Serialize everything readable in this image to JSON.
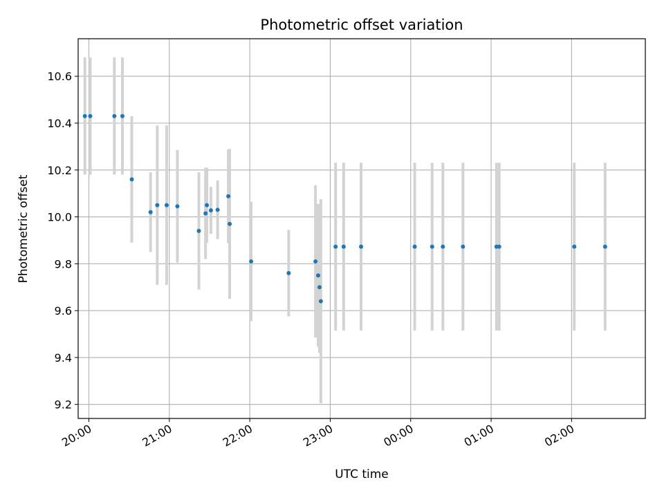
{
  "chart_data": {
    "type": "scatter",
    "title": "Photometric offset variation",
    "xlabel": "UTC time",
    "ylabel": "Photometric offset",
    "x_ticks": [
      "20:00",
      "21:00",
      "22:00",
      "23:00",
      "00:00",
      "01:00",
      "02:00"
    ],
    "y_ticks": [
      "9.2",
      "9.4",
      "9.6",
      "9.8",
      "10.0",
      "10.2",
      "10.4",
      "10.6"
    ],
    "x_tick_times": [
      "20:00",
      "21:00",
      "22:00",
      "23:00",
      "00:00",
      "01:00",
      "02:00"
    ],
    "y_tick_values": [
      9.2,
      9.4,
      9.6,
      9.8,
      10.0,
      10.2,
      10.4,
      10.6
    ],
    "xlim": [
      "19:52",
      "02:55"
    ],
    "ylim": [
      9.14,
      10.76
    ],
    "grid": true,
    "colors": {
      "point": "#1f77b4",
      "errorbar": "#d3d3d3",
      "grid": "#b0b0b0"
    },
    "points": [
      {
        "time": "19:57",
        "y": 10.43,
        "yerr": 0.25
      },
      {
        "time": "20:01",
        "y": 10.43,
        "yerr": 0.25
      },
      {
        "time": "20:19",
        "y": 10.43,
        "yerr": 0.25
      },
      {
        "time": "20:25",
        "y": 10.43,
        "yerr": 0.25
      },
      {
        "time": "20:32",
        "y": 10.16,
        "yerr": 0.27
      },
      {
        "time": "20:46",
        "y": 10.02,
        "yerr": 0.17
      },
      {
        "time": "20:51",
        "y": 10.05,
        "yerr": 0.34
      },
      {
        "time": "20:58",
        "y": 10.05,
        "yerr": 0.34
      },
      {
        "time": "21:06",
        "y": 10.045,
        "yerr": 0.24
      },
      {
        "time": "21:22",
        "y": 9.94,
        "yerr": 0.25
      },
      {
        "time": "21:27",
        "y": 10.015,
        "yerr": 0.195
      },
      {
        "time": "21:28",
        "y": 10.05,
        "yerr": 0.16
      },
      {
        "time": "21:31",
        "y": 10.028,
        "yerr": 0.1
      },
      {
        "time": "21:36",
        "y": 10.03,
        "yerr": 0.125
      },
      {
        "time": "21:44",
        "y": 10.088,
        "yerr": 0.2
      },
      {
        "time": "21:45",
        "y": 9.97,
        "yerr": 0.32
      },
      {
        "time": "22:01",
        "y": 9.81,
        "yerr": 0.255
      },
      {
        "time": "22:29",
        "y": 9.76,
        "yerr": 0.185
      },
      {
        "time": "22:49",
        "y": 9.81,
        "yerr": 0.325
      },
      {
        "time": "22:51",
        "y": 9.75,
        "yerr": 0.305
      },
      {
        "time": "22:52",
        "y": 9.7,
        "yerr": 0.28
      },
      {
        "time": "22:53",
        "y": 9.64,
        "yerr": 0.435
      },
      {
        "time": "23:04",
        "y": 9.873,
        "yerr": 0.358
      },
      {
        "time": "23:10",
        "y": 9.873,
        "yerr": 0.358
      },
      {
        "time": "23:23",
        "y": 9.873,
        "yerr": 0.358
      },
      {
        "time": "00:03",
        "y": 9.873,
        "yerr": 0.358
      },
      {
        "time": "00:16",
        "y": 9.873,
        "yerr": 0.358
      },
      {
        "time": "00:24",
        "y": 9.873,
        "yerr": 0.358
      },
      {
        "time": "00:39",
        "y": 9.873,
        "yerr": 0.358
      },
      {
        "time": "01:04",
        "y": 9.873,
        "yerr": 0.358
      },
      {
        "time": "01:06",
        "y": 9.873,
        "yerr": 0.358
      },
      {
        "time": "02:02",
        "y": 9.873,
        "yerr": 0.358
      },
      {
        "time": "02:25",
        "y": 9.873,
        "yerr": 0.358
      }
    ]
  }
}
